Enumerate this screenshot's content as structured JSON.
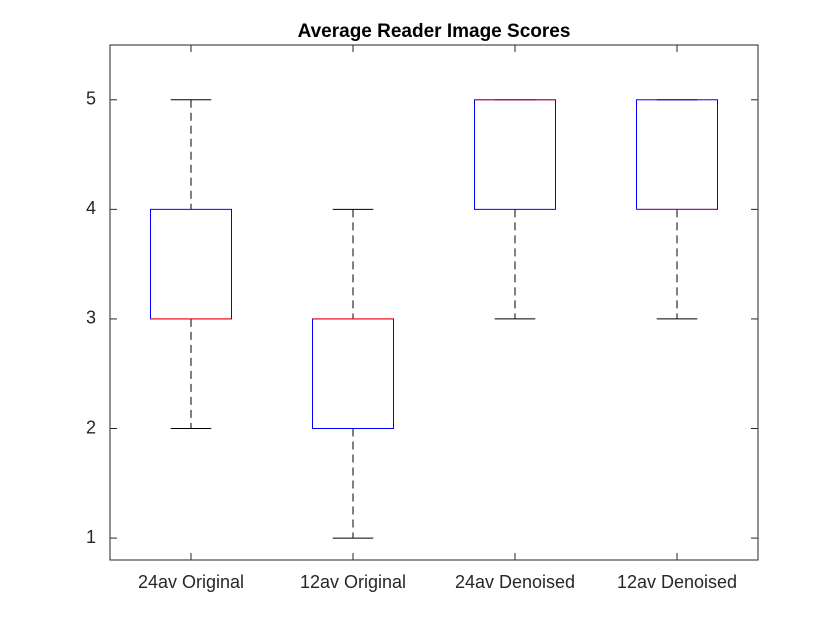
{
  "chart_data": {
    "type": "box",
    "title": "Average Reader Image Scores",
    "categories": [
      "24av Original",
      "12av Original",
      "24av Denoised",
      "12av Denoised"
    ],
    "boxes": [
      {
        "min": 2,
        "q1": 3,
        "median": 3,
        "q3": 4,
        "max": 5
      },
      {
        "min": 1,
        "q1": 2,
        "median": 3,
        "q3": 3,
        "max": 4
      },
      {
        "min": 3,
        "q1": 4,
        "median": 5,
        "q3": 5,
        "max": 5
      },
      {
        "min": 3,
        "q1": 4,
        "median": 4,
        "q3": 5,
        "max": 5
      }
    ],
    "box_color": "#0000ff",
    "median_color": "#ff0000",
    "whisker_color": "#000000",
    "ylim": [
      0.8,
      5.5
    ],
    "yticks": [
      1,
      2,
      3,
      4,
      5
    ],
    "grid": false
  }
}
